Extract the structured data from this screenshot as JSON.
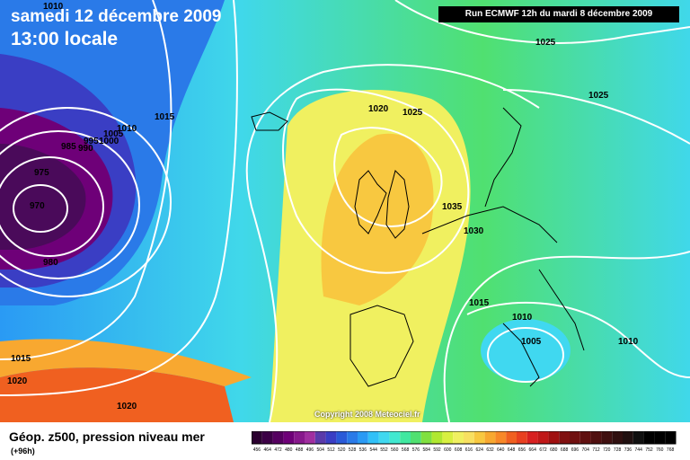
{
  "map": {
    "title_date": "samedi 12 décembre 2009",
    "title_time": "13:00 locale",
    "run_label": "Run ECMWF 12h du mardi 8 décembre 2009",
    "copyright": "Copyright 2008 Meteociel.fr"
  },
  "isobars": [
    {
      "label": "1010"
    },
    {
      "label": "1015"
    },
    {
      "label": "1010"
    },
    {
      "label": "1005"
    },
    {
      "label": "1000"
    },
    {
      "label": "995"
    },
    {
      "label": "990"
    },
    {
      "label": "985"
    },
    {
      "label": "975"
    },
    {
      "label": "970"
    },
    {
      "label": "980"
    },
    {
      "label": "1015"
    },
    {
      "label": "1020"
    },
    {
      "label": "1020"
    },
    {
      "label": "1020"
    },
    {
      "label": "1025"
    },
    {
      "label": "1025"
    },
    {
      "label": "1025"
    },
    {
      "label": "1035"
    },
    {
      "label": "1030"
    },
    {
      "label": "1015"
    },
    {
      "label": "1010"
    },
    {
      "label": "1005"
    },
    {
      "label": "1010"
    }
  ],
  "legend": {
    "title": "Géop. z500, pression niveau mer",
    "subtitle": "(+96h)",
    "scale_values": [
      "456",
      "464",
      "472",
      "480",
      "488",
      "496",
      "504",
      "512",
      "520",
      "528",
      "536",
      "544",
      "552",
      "560",
      "568",
      "576",
      "584",
      "592",
      "600",
      "608",
      "616",
      "624",
      "632",
      "640",
      "648",
      "656",
      "664",
      "672",
      "680",
      "688",
      "696",
      "704",
      "712",
      "720",
      "728",
      "736",
      "744",
      "752",
      "760",
      "768"
    ],
    "scale_colors": [
      "#2b0030",
      "#3c0046",
      "#550060",
      "#6e0078",
      "#87188c",
      "#a02ea0",
      "#5a3aaa",
      "#3a3ec4",
      "#2a5ad8",
      "#2a7ae8",
      "#2a9af4",
      "#30c0f8",
      "#40d8f0",
      "#40e8d0",
      "#40e8a0",
      "#50e070",
      "#80e040",
      "#b0e830",
      "#d8f040",
      "#f0f060",
      "#f8e060",
      "#f8c840",
      "#f8a830",
      "#f88828",
      "#f06020",
      "#e84020",
      "#d82020",
      "#c01818",
      "#a01010",
      "#801010",
      "#701010",
      "#601010",
      "#501010",
      "#401010",
      "#301010",
      "#201010",
      "#101010",
      "#000000",
      "#000000",
      "#000000"
    ],
    "colors": {
      "deep_low": "#4a0a5a",
      "low": "#2a56d8",
      "cyan": "#40d8ea",
      "green": "#70e080",
      "yellow": "#f0f070",
      "orange": "#f8b830",
      "red": "#f06020"
    }
  }
}
